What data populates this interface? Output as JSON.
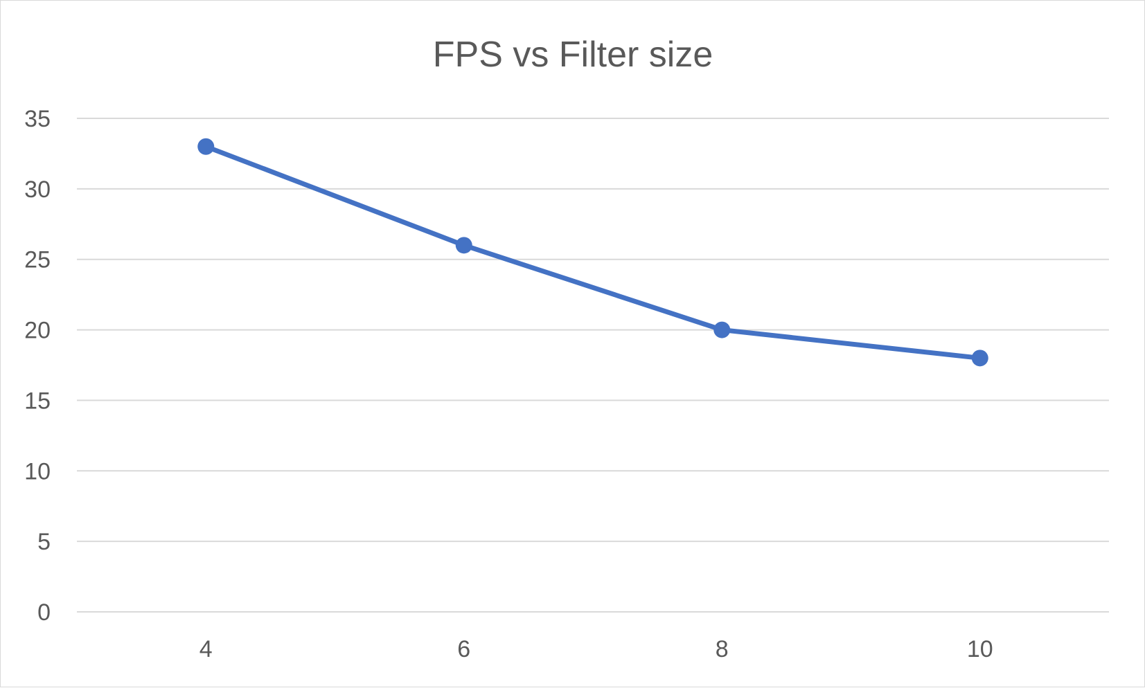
{
  "chart_data": {
    "type": "line",
    "title": "FPS vs Filter size",
    "xlabel": "",
    "ylabel": "",
    "categories": [
      "4",
      "6",
      "8",
      "10"
    ],
    "series": [
      {
        "values": [
          33,
          26,
          20,
          18
        ],
        "color": "#4472c4"
      }
    ],
    "ylim": [
      0,
      35
    ],
    "yticks": [
      "0",
      "5",
      "10",
      "15",
      "20",
      "25",
      "30",
      "35"
    ],
    "grid": true,
    "legend": "none",
    "markers": true,
    "colors": {
      "gridline": "#d9d9d9",
      "text": "#595959",
      "series": "#4472c4"
    }
  }
}
